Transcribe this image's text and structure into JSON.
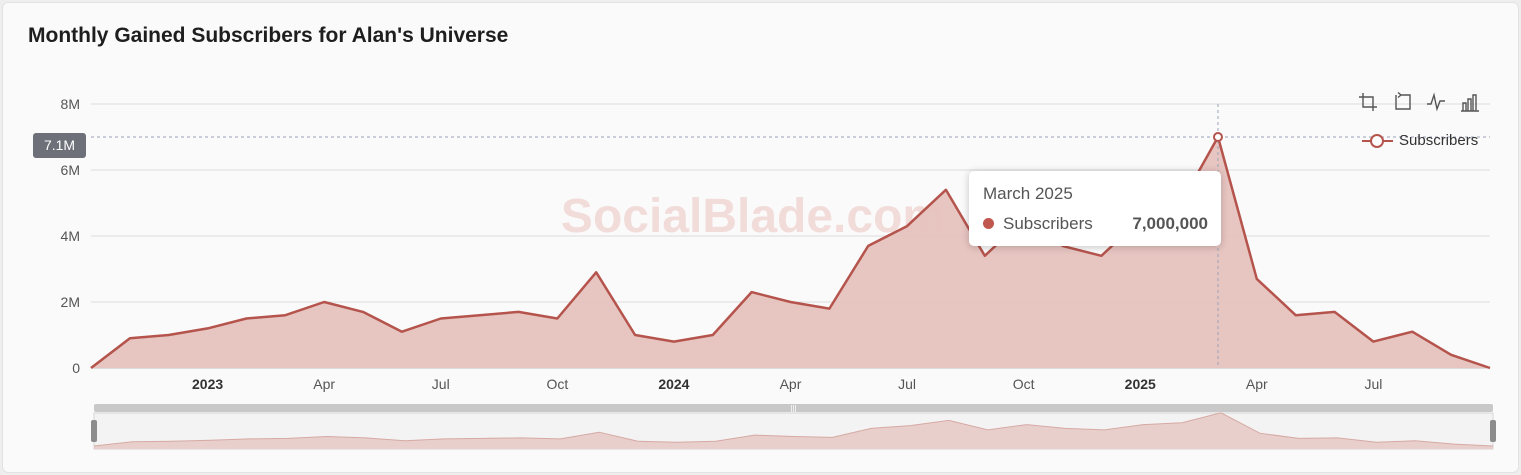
{
  "title": "Monthly Gained Subscribers for Alan's Universe",
  "watermark": "SocialBlade.com",
  "colors": {
    "line": "#b5544c",
    "area": "#e6c2be",
    "dot": "#c0584f",
    "axis_badge": "#6e7079"
  },
  "toolbar": {
    "icons": [
      "zoom-select-icon",
      "zoom-reset-icon",
      "line-chart-icon",
      "bar-chart-icon"
    ]
  },
  "axis_pointer": {
    "y_label": "7.1M"
  },
  "tooltip": {
    "title": "March 2025",
    "series": "Subscribers",
    "value": "7,000,000"
  },
  "chart_data": {
    "type": "area",
    "title": "Monthly Gained Subscribers for Alan's Universe",
    "xlabel": "",
    "ylabel": "",
    "ylim": [
      0,
      8000000
    ],
    "y_ticks": [
      {
        "value": 0,
        "label": "0"
      },
      {
        "value": 2000000,
        "label": "2M"
      },
      {
        "value": 4000000,
        "label": "4M"
      },
      {
        "value": 6000000,
        "label": "6M"
      },
      {
        "value": 8000000,
        "label": "8M"
      }
    ],
    "x_ticks": [
      {
        "date": "2023-01",
        "label": "2023",
        "bold": true
      },
      {
        "date": "2023-04",
        "label": "Apr",
        "bold": false
      },
      {
        "date": "2023-07",
        "label": "Jul",
        "bold": false
      },
      {
        "date": "2023-10",
        "label": "Oct",
        "bold": false
      },
      {
        "date": "2024-01",
        "label": "2024",
        "bold": true
      },
      {
        "date": "2024-04",
        "label": "Apr",
        "bold": false
      },
      {
        "date": "2024-07",
        "label": "Jul",
        "bold": false
      },
      {
        "date": "2024-10",
        "label": "Oct",
        "bold": false
      },
      {
        "date": "2025-01",
        "label": "2025",
        "bold": true
      },
      {
        "date": "2025-04",
        "label": "Apr",
        "bold": false
      },
      {
        "date": "2025-07",
        "label": "Jul",
        "bold": false
      }
    ],
    "x_range": [
      "2022-10",
      "2025-10"
    ],
    "legend": {
      "position": "top-right",
      "entries": [
        "Subscribers"
      ]
    },
    "grid": true,
    "series": [
      {
        "name": "Subscribers",
        "x": [
          "2022-10",
          "2022-11",
          "2022-12",
          "2023-01",
          "2023-02",
          "2023-03",
          "2023-04",
          "2023-05",
          "2023-06",
          "2023-07",
          "2023-08",
          "2023-09",
          "2023-10",
          "2023-11",
          "2023-12",
          "2024-01",
          "2024-02",
          "2024-03",
          "2024-04",
          "2024-05",
          "2024-06",
          "2024-07",
          "2024-08",
          "2024-09",
          "2024-10",
          "2024-11",
          "2024-12",
          "2025-01",
          "2025-02",
          "2025-03",
          "2025-04",
          "2025-05",
          "2025-06",
          "2025-07",
          "2025-08",
          "2025-09",
          "2025-10"
        ],
        "values": [
          0,
          900000,
          1000000,
          1200000,
          1500000,
          1600000,
          2000000,
          1700000,
          1100000,
          1500000,
          1600000,
          1700000,
          1500000,
          2900000,
          1000000,
          800000,
          1000000,
          2300000,
          2000000,
          1800000,
          3700000,
          4300000,
          5400000,
          3400000,
          4500000,
          3700000,
          3400000,
          4500000,
          4900000,
          7000000,
          2700000,
          1600000,
          1700000,
          800000,
          1100000,
          400000,
          0
        ]
      }
    ],
    "highlight": {
      "x": "2025-03",
      "value": 7000000
    }
  }
}
